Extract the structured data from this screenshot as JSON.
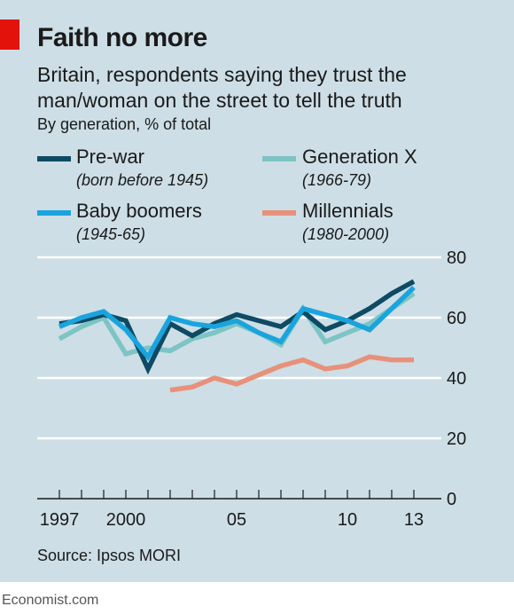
{
  "title": "Faith no more",
  "subtitle": "Britain, respondents saying they trust the man/woman on the street to tell the truth",
  "units": "By generation, % of total",
  "source": "Source: Ipsos MORI",
  "footer": "Economist.com",
  "legend": [
    {
      "name": "Pre-war",
      "sub": "(born before 1945)",
      "color": "#0e4a63"
    },
    {
      "name": "Generation X",
      "sub": "(1966-79)",
      "color": "#7dc4c4"
    },
    {
      "name": "Baby boomers",
      "sub": "(1945-65)",
      "color": "#1aa4dd"
    },
    {
      "name": "Millennials",
      "sub": "(1980-2000)",
      "color": "#e8917a"
    }
  ],
  "chart_data": {
    "type": "line",
    "x_tick_labels": [
      "1997",
      "2000",
      "05",
      "10",
      "13"
    ],
    "x_tick_values": [
      1997,
      2000,
      2005,
      2010,
      2013
    ],
    "xlim": [
      1997,
      2013
    ],
    "ylim": [
      0,
      80
    ],
    "y_ticks": [
      0,
      20,
      40,
      60,
      80
    ],
    "grid": true,
    "y_axis_side": "right",
    "series": [
      {
        "name": "Generation X",
        "color": "#7dc4c4",
        "x": [
          1997,
          1998,
          1999,
          2000,
          2001,
          2002,
          2003,
          2004,
          2005,
          2006,
          2007,
          2008,
          2009,
          2010,
          2011,
          2012,
          2013
        ],
        "y": [
          53,
          57,
          60,
          48,
          50,
          49,
          53,
          55,
          58,
          55,
          51,
          63,
          52,
          55,
          58,
          63,
          68
        ]
      },
      {
        "name": "Pre-war",
        "color": "#0e4a63",
        "x": [
          1997,
          1998,
          1999,
          2000,
          2001,
          2002,
          2003,
          2004,
          2005,
          2006,
          2007,
          2008,
          2009,
          2010,
          2011,
          2012,
          2013
        ],
        "y": [
          58,
          59,
          61,
          59,
          43,
          58,
          54,
          58,
          61,
          59,
          57,
          62,
          56,
          59,
          63,
          68,
          72
        ]
      },
      {
        "name": "Baby boomers",
        "color": "#1aa4dd",
        "x": [
          1997,
          1998,
          1999,
          2000,
          2001,
          2002,
          2003,
          2004,
          2005,
          2006,
          2007,
          2008,
          2009,
          2010,
          2011,
          2012,
          2013
        ],
        "y": [
          57,
          60,
          62,
          56,
          47,
          60,
          58,
          57,
          59,
          55,
          52,
          63,
          61,
          59,
          56,
          63,
          70
        ]
      },
      {
        "name": "Millennials",
        "color": "#e8917a",
        "x": [
          2002,
          2003,
          2004,
          2005,
          2006,
          2007,
          2008,
          2009,
          2010,
          2011,
          2012,
          2013
        ],
        "y": [
          36,
          37,
          40,
          38,
          41,
          44,
          46,
          43,
          44,
          47,
          46,
          46
        ]
      }
    ]
  }
}
